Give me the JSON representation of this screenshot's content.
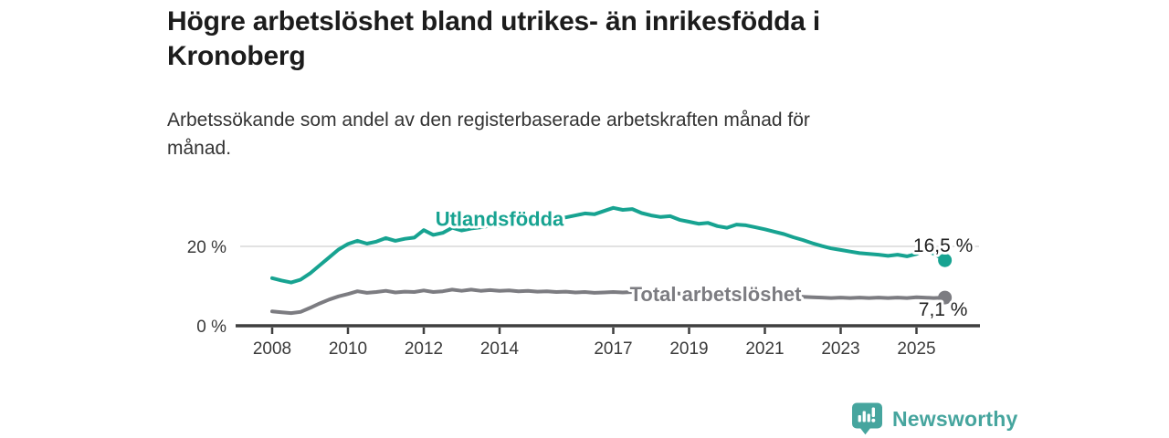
{
  "header": {
    "title": "Högre arbetslöshet bland utrikes- än inrikesfödda i\nKronoberg",
    "subtitle": "Arbetssökande som andel av den registerbaserade arbetskraften månad för\nmånad."
  },
  "footer": {
    "brand": "Newsworthy",
    "brand_color": "#46a59e"
  },
  "chart_data": {
    "type": "line",
    "title": "Högre arbetslöshet bland utrikes- än inrikesfödda i Kronoberg",
    "subtitle": "Arbetssökande som andel av den registerbaserade arbetskraften månad för månad.",
    "unit": "%",
    "grid": "horizontal-at-20-only",
    "legend_position": "inline-labels",
    "ylim": [
      0,
      31
    ],
    "xlim": [
      2008,
      2026.5
    ],
    "x_ticks": [
      2008,
      2010,
      2012,
      2014,
      2017,
      2019,
      2021,
      2023,
      2025
    ],
    "y_tick_labels": [
      {
        "value": 0,
        "label": "0 %"
      },
      {
        "value": 20,
        "label": "20 %"
      }
    ],
    "grid_values": [
      20
    ],
    "x": [
      2008,
      2008.25,
      2008.5,
      2008.75,
      2009,
      2009.25,
      2009.5,
      2009.75,
      2010,
      2010.25,
      2010.5,
      2010.75,
      2011,
      2011.25,
      2011.5,
      2011.75,
      2012,
      2012.25,
      2012.5,
      2012.75,
      2013,
      2013.25,
      2013.5,
      2013.75,
      2014,
      2014.25,
      2014.5,
      2014.75,
      2015,
      2015.25,
      2015.5,
      2015.75,
      2016,
      2016.25,
      2016.5,
      2016.75,
      2017,
      2017.25,
      2017.5,
      2017.75,
      2018,
      2018.25,
      2018.5,
      2018.75,
      2019,
      2019.25,
      2019.5,
      2019.75,
      2020,
      2020.25,
      2020.5,
      2020.75,
      2021,
      2021.25,
      2021.5,
      2021.75,
      2022,
      2022.25,
      2022.5,
      2022.75,
      2023,
      2023.25,
      2023.5,
      2023.75,
      2024,
      2024.25,
      2024.5,
      2024.75,
      2025,
      2025.2,
      2025.45,
      2025.75
    ],
    "series": [
      {
        "name": "Utlandsfödda",
        "color": "#17a391",
        "end_label": "16,5 %",
        "end_value": 16.5,
        "label_at": {
          "x": 2014.0,
          "value": 25.2
        },
        "values": [
          12.0,
          11.4,
          10.9,
          11.6,
          13.2,
          15.2,
          17.2,
          19.2,
          20.6,
          21.4,
          20.7,
          21.2,
          22.1,
          21.4,
          21.9,
          22.2,
          24.1,
          22.9,
          23.4,
          24.7,
          24.0,
          24.5,
          24.8,
          25.2,
          25.1,
          25.6,
          25.9,
          26.3,
          26.2,
          26.7,
          27.0,
          27.3,
          27.8,
          28.3,
          28.1,
          28.9,
          29.7,
          29.2,
          29.4,
          28.4,
          27.8,
          27.4,
          27.6,
          26.7,
          26.2,
          25.7,
          25.9,
          25.1,
          24.7,
          25.5,
          25.3,
          24.8,
          24.3,
          23.7,
          23.1,
          22.3,
          21.6,
          20.8,
          20.1,
          19.5,
          19.1,
          18.7,
          18.3,
          18.1,
          17.9,
          17.6,
          17.9,
          17.5,
          18.1,
          19.0,
          18.2,
          16.5
        ]
      },
      {
        "name": "Total arbetslöshet",
        "color": "#7c7c81",
        "end_label": "7,1 %",
        "end_value": 7.1,
        "label_at": {
          "x": 2019.7,
          "value": 6.2
        },
        "values": [
          3.6,
          3.4,
          3.2,
          3.5,
          4.5,
          5.6,
          6.6,
          7.4,
          8.0,
          8.7,
          8.3,
          8.5,
          8.8,
          8.4,
          8.6,
          8.5,
          8.9,
          8.5,
          8.7,
          9.1,
          8.8,
          9.1,
          8.8,
          9.0,
          8.8,
          8.9,
          8.7,
          8.8,
          8.6,
          8.7,
          8.5,
          8.6,
          8.4,
          8.5,
          8.3,
          8.4,
          8.5,
          8.4,
          8.5,
          8.3,
          8.4,
          8.2,
          8.3,
          8.1,
          8.0,
          7.9,
          8.0,
          7.8,
          7.7,
          8.1,
          8.0,
          7.9,
          7.8,
          7.6,
          7.5,
          7.4,
          7.3,
          7.2,
          7.1,
          7.0,
          7.1,
          7.0,
          7.1,
          7.0,
          7.1,
          7.0,
          7.1,
          7.0,
          7.2,
          7.1,
          7.0,
          7.1
        ]
      }
    ]
  }
}
